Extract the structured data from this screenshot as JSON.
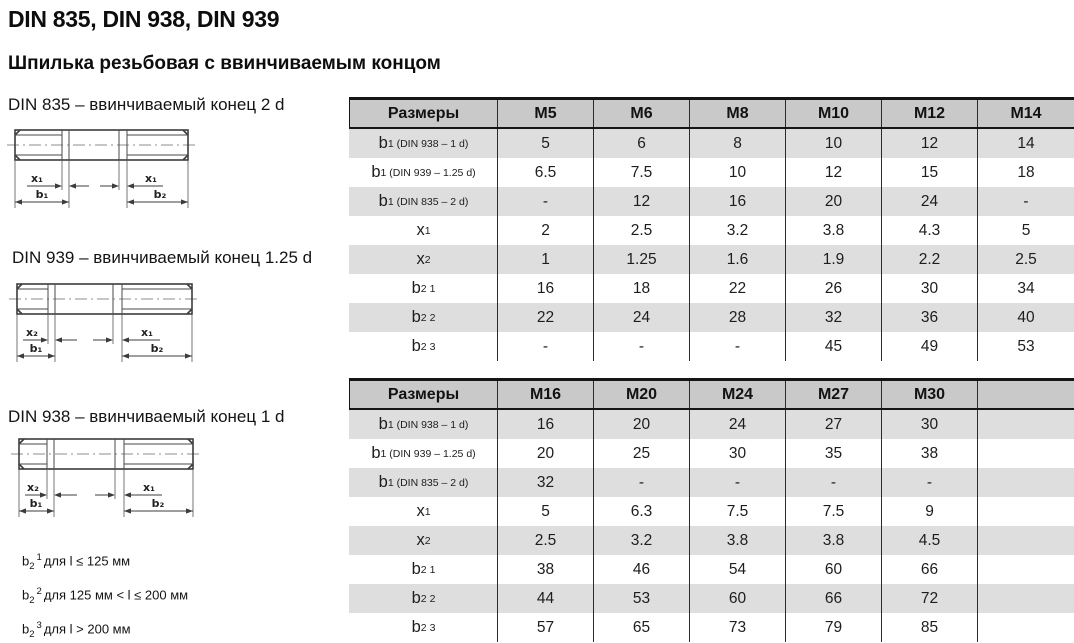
{
  "page": {
    "title": "DIN 835, DIN 938, DIN 939",
    "subtitle": "Шпилька резьбовая с ввинчиваемым концом"
  },
  "drawings": [
    {
      "caption": "DIN 835 – ввинчиваемый конец 2 d",
      "dims": {
        "xl": "x₁",
        "xr": "x₁",
        "b1": "b₁",
        "b2": "b₂"
      }
    },
    {
      "caption": "DIN 939 – ввинчиваемый конец 1.25 d",
      "dims": {
        "xl": "x₂",
        "xr": "x₁",
        "b1": "b₁",
        "b2": "b₂"
      }
    },
    {
      "caption": "DIN 938 – ввинчиваемый конец 1 d",
      "dims": {
        "xl": "x₂",
        "xr": "x₁",
        "b1": "b₁",
        "b2": "b₂"
      }
    }
  ],
  "footnotes": [
    {
      "base": "b",
      "sub": "2",
      "sup": "1",
      "rest": "для l ≤ 125 мм"
    },
    {
      "base": "b",
      "sub": "2",
      "sup": "2",
      "rest": "для 125 мм < l ≤ 200 мм"
    },
    {
      "base": "b",
      "sub": "2",
      "sup": "3",
      "rest": "для l > 200 мм"
    }
  ],
  "tables": [
    {
      "header": "Размеры",
      "columns": [
        "M5",
        "M6",
        "M8",
        "M10",
        "M12",
        "M14"
      ],
      "rows": [
        {
          "label": {
            "base": "b",
            "sub": "1 (DIN 938 – 1 d)"
          },
          "cells": [
            "5",
            "6",
            "8",
            "10",
            "12",
            "14"
          ]
        },
        {
          "label": {
            "base": "b",
            "sub": "1 (DIN 939 – 1.25 d)"
          },
          "cells": [
            "6.5",
            "7.5",
            "10",
            "12",
            "15",
            "18"
          ]
        },
        {
          "label": {
            "base": "b",
            "sub": "1 (DIN 835 – 2 d)"
          },
          "cells": [
            "-",
            "12",
            "16",
            "20",
            "24",
            "-"
          ]
        },
        {
          "label": {
            "base": "x",
            "sub": "1"
          },
          "cells": [
            "2",
            "2.5",
            "3.2",
            "3.8",
            "4.3",
            "5"
          ]
        },
        {
          "label": {
            "base": "x",
            "sub": "2"
          },
          "cells": [
            "1",
            "1.25",
            "1.6",
            "1.9",
            "2.2",
            "2.5"
          ]
        },
        {
          "label": {
            "base": "b",
            "sub": "2",
            "sup": "1"
          },
          "cells": [
            "16",
            "18",
            "22",
            "26",
            "30",
            "34"
          ]
        },
        {
          "label": {
            "base": "b",
            "sub": "2",
            "sup": "2"
          },
          "cells": [
            "22",
            "24",
            "28",
            "32",
            "36",
            "40"
          ]
        },
        {
          "label": {
            "base": "b",
            "sub": "2",
            "sup": "3"
          },
          "cells": [
            "-",
            "-",
            "-",
            "45",
            "49",
            "53"
          ]
        }
      ]
    },
    {
      "header": "Размеры",
      "columns": [
        "M16",
        "M20",
        "M24",
        "M27",
        "M30",
        ""
      ],
      "rows": [
        {
          "label": {
            "base": "b",
            "sub": "1 (DIN 938 – 1 d)"
          },
          "cells": [
            "16",
            "20",
            "24",
            "27",
            "30",
            ""
          ]
        },
        {
          "label": {
            "base": "b",
            "sub": "1 (DIN 939 – 1.25 d)"
          },
          "cells": [
            "20",
            "25",
            "30",
            "35",
            "38",
            ""
          ]
        },
        {
          "label": {
            "base": "b",
            "sub": "1 (DIN 835 – 2 d)"
          },
          "cells": [
            "32",
            "-",
            "-",
            "-",
            "-",
            ""
          ]
        },
        {
          "label": {
            "base": "x",
            "sub": "1"
          },
          "cells": [
            "5",
            "6.3",
            "7.5",
            "7.5",
            "9",
            ""
          ]
        },
        {
          "label": {
            "base": "x",
            "sub": "2"
          },
          "cells": [
            "2.5",
            "3.2",
            "3.8",
            "3.8",
            "4.5",
            ""
          ]
        },
        {
          "label": {
            "base": "b",
            "sub": "2",
            "sup": "1"
          },
          "cells": [
            "38",
            "46",
            "54",
            "60",
            "66",
            ""
          ]
        },
        {
          "label": {
            "base": "b",
            "sub": "2",
            "sup": "2"
          },
          "cells": [
            "44",
            "53",
            "60",
            "66",
            "72",
            ""
          ]
        },
        {
          "label": {
            "base": "b",
            "sub": "2",
            "sup": "3"
          },
          "cells": [
            "57",
            "65",
            "73",
            "79",
            "85",
            ""
          ]
        }
      ]
    }
  ],
  "colors": {
    "header_bg": "#c9c9c9",
    "stripe_bg": "#dedede",
    "border": "#1a1a1a",
    "text": "#1d1d1d"
  }
}
